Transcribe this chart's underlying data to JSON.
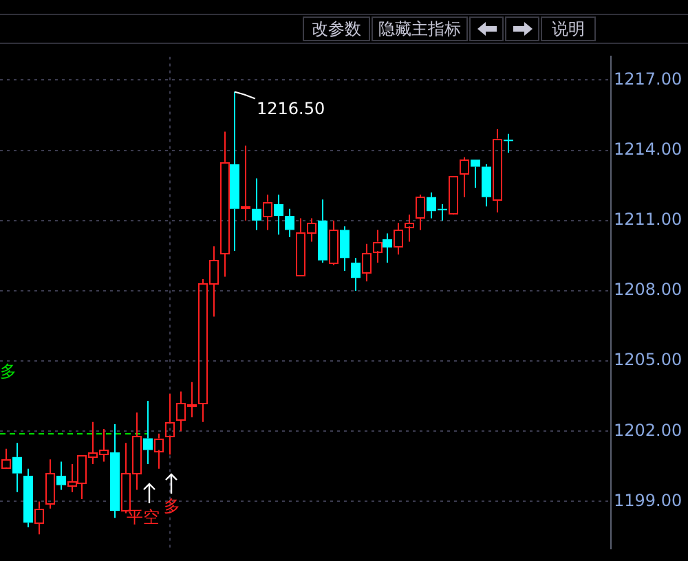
{
  "chart_data": {
    "type": "candlestick",
    "categories": [
      null,
      null,
      null,
      null,
      null,
      null,
      null,
      null,
      null,
      null,
      null,
      null,
      null,
      null,
      null,
      null,
      null,
      null,
      null,
      null,
      null,
      null,
      null,
      null,
      null,
      null,
      null,
      null,
      null,
      null,
      null,
      null,
      null,
      null,
      null,
      null,
      null,
      null,
      null,
      null,
      null,
      null,
      null,
      null,
      null,
      null,
      null,
      null,
      null,
      null,
      null,
      null,
      null,
      null,
      null,
      null
    ],
    "ohlc": [
      [
        1200.46,
        1201.25,
        1200.4,
        1200.8
      ],
      [
        1200.9,
        1201.5,
        1199.4,
        1200.2
      ],
      [
        1200.1,
        1200.4,
        1197.9,
        1198.1
      ],
      [
        1198.1,
        1199.0,
        1197.6,
        1198.7
      ],
      [
        1198.9,
        1200.8,
        1198.7,
        1200.2
      ],
      [
        1200.1,
        1200.7,
        1199.5,
        1199.7
      ],
      [
        1199.7,
        1200.6,
        1199.4,
        1199.85
      ],
      [
        1199.8,
        1201.0,
        1199.1,
        1201.0
      ],
      [
        1200.9,
        1202.4,
        1200.6,
        1201.1
      ],
      [
        1201.0,
        1202.1,
        1200.7,
        1201.2
      ],
      [
        1201.1,
        1202.3,
        1198.3,
        1198.6
      ],
      [
        1198.6,
        1201.5,
        1198.5,
        1200.2
      ],
      [
        1200.2,
        1202.8,
        1199.5,
        1201.8
      ],
      [
        1201.7,
        1203.3,
        1200.6,
        1201.2
      ],
      [
        1201.2,
        1201.9,
        1200.4,
        1201.7
      ],
      [
        1201.8,
        1203.6,
        1201.0,
        1202.4
      ],
      [
        1202.5,
        1203.7,
        1202.0,
        1203.2
      ],
      [
        1203.1,
        1204.1,
        1202.6,
        1203.15
      ],
      [
        1203.2,
        1208.5,
        1202.4,
        1208.3
      ],
      [
        1208.3,
        1209.9,
        1206.9,
        1209.3
      ],
      [
        1209.6,
        1214.8,
        1208.6,
        1213.5
      ],
      [
        1213.4,
        1216.5,
        1209.7,
        1211.5
      ],
      [
        1211.55,
        1214.2,
        1211.0,
        1211.6
      ],
      [
        1211.5,
        1212.8,
        1210.6,
        1211.0
      ],
      [
        1211.2,
        1212.1,
        1210.6,
        1211.8
      ],
      [
        1211.7,
        1212.1,
        1210.4,
        1211.2
      ],
      [
        1211.2,
        1211.5,
        1210.3,
        1210.6
      ],
      [
        1208.7,
        1211.1,
        1208.7,
        1210.5
      ],
      [
        1210.5,
        1211.1,
        1210.1,
        1210.9
      ],
      [
        1211.0,
        1211.9,
        1209.2,
        1209.3
      ],
      [
        1209.2,
        1211.0,
        1209.1,
        1210.6
      ],
      [
        1210.6,
        1210.75,
        1208.85,
        1209.4
      ],
      [
        1209.2,
        1209.4,
        1208.0,
        1208.55
      ],
      [
        1208.8,
        1210.0,
        1208.4,
        1209.6
      ],
      [
        1209.7,
        1210.6,
        1209.2,
        1210.1
      ],
      [
        1210.2,
        1210.45,
        1209.2,
        1209.85
      ],
      [
        1209.9,
        1210.9,
        1209.55,
        1210.6
      ],
      [
        1210.75,
        1211.25,
        1210.1,
        1210.9
      ],
      [
        1211.1,
        1212.1,
        1210.6,
        1212.0
      ],
      [
        1212.0,
        1212.2,
        1211.1,
        1211.4
      ],
      [
        1211.5,
        1211.7,
        1211.0,
        1211.45
      ],
      [
        1211.3,
        1212.9,
        1211.25,
        1212.9
      ],
      [
        1213.0,
        1213.7,
        1212.0,
        1213.6
      ],
      [
        1213.6,
        1213.6,
        1212.4,
        1213.3
      ],
      [
        1213.3,
        1213.4,
        1211.6,
        1212.0
      ],
      [
        1211.9,
        1214.9,
        1211.35,
        1214.5
      ],
      [
        1214.45,
        1214.7,
        1213.9,
        1214.4
      ],
      null,
      null,
      null,
      null,
      null,
      null,
      null,
      null,
      null
    ],
    "colors": [
      "#ff2020",
      "#00ffff",
      "#00ffff",
      "#ff2020",
      "#ff2020",
      "#00ffff",
      "#ff2020",
      "#ff2020",
      "#ff2020",
      "#ff2020",
      "#00ffff",
      "#ff2020",
      "#ff2020",
      "#00ffff",
      "#ff2020",
      "#ff2020",
      "#ff2020",
      "#ff2020",
      "#ff2020",
      "#ff2020",
      "#ff2020",
      "#00ffff",
      "#ff2020",
      "#00ffff",
      "#ff2020",
      "#00ffff",
      "#00ffff",
      "#ff2020",
      "#ff2020",
      "#00ffff",
      "#ff2020",
      "#00ffff",
      "#00ffff",
      "#ff2020",
      "#ff2020",
      "#00ffff",
      "#ff2020",
      "#ff2020",
      "#ff2020",
      "#00ffff",
      "#00ffff",
      "#ff2020",
      "#ff2020",
      "#00ffff",
      "#00ffff",
      "#ff2020",
      "#00ffff",
      null,
      null,
      null,
      null,
      null,
      null,
      null,
      null,
      null
    ],
    "ylim": [
      1197,
      1218
    ],
    "yticks": [
      {
        "value": 1199,
        "label": "1199.00"
      },
      {
        "value": 1202,
        "label": "1202.00"
      },
      {
        "value": 1205,
        "label": "1205.00"
      },
      {
        "value": 1208,
        "label": "1208.00"
      },
      {
        "value": 1211,
        "label": "1211.00"
      },
      {
        "value": 1214,
        "label": "1214.00"
      },
      {
        "value": 1217,
        "label": "1217.00"
      }
    ],
    "ref_lines": [
      {
        "axis": "y",
        "value": 1201.9,
        "color": "#00dd00",
        "line_style": "dashed"
      }
    ],
    "annotations": [
      "改参数",
      "隐藏主指标",
      "说明",
      "多",
      "平空",
      "多",
      "1216.50"
    ],
    "grid": "y",
    "legend": false,
    "tick_labels": "y"
  }
}
